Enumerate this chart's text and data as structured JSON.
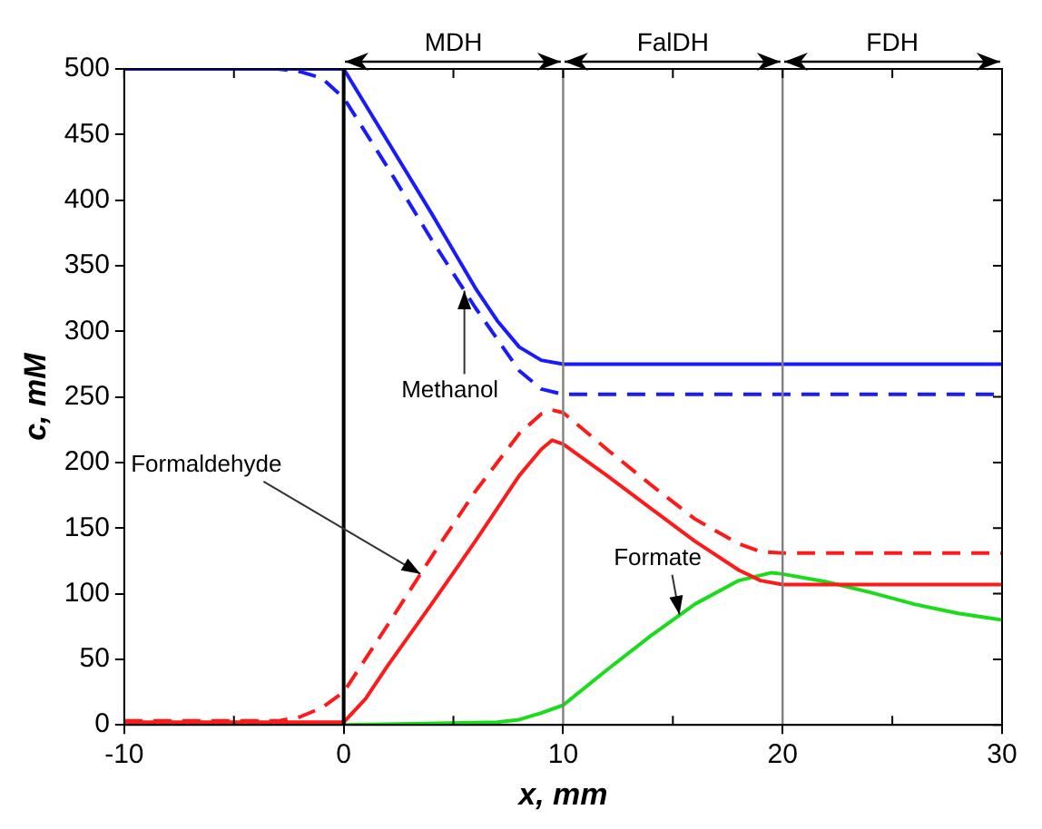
{
  "chart_data": {
    "type": "line",
    "xlabel": "x, mm",
    "ylabel": "c, mM",
    "xlim": [
      -10,
      30
    ],
    "xticks": [
      -10,
      0,
      10,
      20,
      30
    ],
    "ylim": [
      0,
      500
    ],
    "yticks": [
      0,
      50,
      100,
      150,
      200,
      250,
      300,
      350,
      400,
      450,
      500
    ],
    "grid": false,
    "legend": false,
    "marker": "none",
    "series": [
      {
        "color": "#1a1aff",
        "line_style": "solid",
        "x": [
          -10,
          -3,
          0,
          2,
          4,
          6,
          7,
          8,
          9,
          10,
          30
        ],
        "values": [
          500,
          500,
          500,
          445,
          390,
          333,
          308,
          288,
          278,
          275,
          275
        ]
      },
      {
        "color": "#1a1aff",
        "line_style": "dashed",
        "x": [
          -10,
          -3,
          -2,
          -1,
          0,
          2,
          4,
          6,
          8,
          9,
          10,
          30
        ],
        "values": [
          500,
          500,
          498,
          493,
          478,
          425,
          370,
          318,
          270,
          256,
          252,
          252
        ]
      },
      {
        "color": "#ff1a1a",
        "line_style": "solid",
        "x": [
          -10,
          0,
          1,
          2,
          4,
          6,
          8,
          9,
          9.5,
          10,
          12,
          14,
          16,
          18,
          19,
          20,
          30
        ],
        "values": [
          2,
          2,
          20,
          45,
          92,
          140,
          190,
          210,
          217,
          214,
          190,
          165,
          140,
          118,
          110,
          107,
          107
        ]
      },
      {
        "color": "#ff1a1a",
        "line_style": "dashed",
        "x": [
          -10,
          -3,
          -2,
          -1,
          0,
          2,
          4,
          6,
          8,
          9,
          9.5,
          10,
          12,
          14,
          16,
          18,
          19,
          20,
          30
        ],
        "values": [
          3,
          3,
          6,
          13,
          25,
          76,
          128,
          178,
          222,
          237,
          240,
          238,
          210,
          183,
          157,
          138,
          132,
          131,
          131
        ]
      },
      {
        "color": "#1adc1a",
        "line_style": "solid",
        "x": [
          -2,
          0,
          7,
          8,
          9,
          10,
          12,
          14,
          16,
          18,
          19.5,
          20,
          22,
          24,
          26,
          28,
          30
        ],
        "values": [
          0,
          0,
          2,
          4,
          9,
          15,
          42,
          68,
          92,
          110,
          116,
          115,
          109,
          101,
          92,
          85,
          80
        ]
      }
    ],
    "ref_lines": [
      {
        "axis": "x",
        "value": 0,
        "color": "#000000"
      },
      {
        "axis": "x",
        "value": 10,
        "color": "#808080"
      },
      {
        "axis": "x",
        "value": 20,
        "color": "#808080"
      }
    ],
    "annotations": [
      "MDH",
      "FalDH",
      "FDH",
      {
        "text": "Methanol",
        "x": 5.5,
        "y": 331
      },
      {
        "text": "Formaldehyde",
        "x": 3.5,
        "y": 115
      },
      {
        "text": "Formate",
        "x": 15.3,
        "y": 84
      }
    ]
  }
}
